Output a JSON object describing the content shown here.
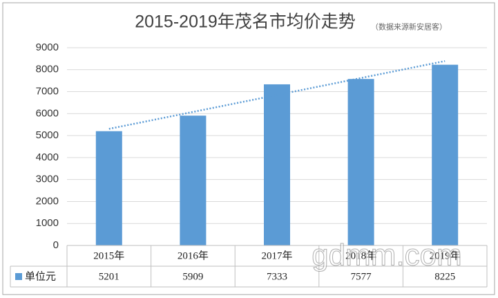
{
  "chart_data": {
    "type": "bar",
    "title": "2015-2019年茂名市均价走势",
    "subtitle": "（数据来源新安居客）",
    "categories": [
      "2015年",
      "2016年",
      "2017年",
      "2018年",
      "2019年"
    ],
    "series": [
      {
        "name": "单位元",
        "color": "#5b9bd5",
        "values": [
          5201,
          5909,
          7333,
          7577,
          8225
        ]
      }
    ],
    "ylim": [
      0,
      9000
    ],
    "yticks": [
      0,
      1000,
      2000,
      3000,
      4000,
      5000,
      6000,
      7000,
      8000,
      9000
    ],
    "grid": true,
    "trendline": "linear",
    "data_table": true,
    "watermark": "gdmm.com"
  }
}
